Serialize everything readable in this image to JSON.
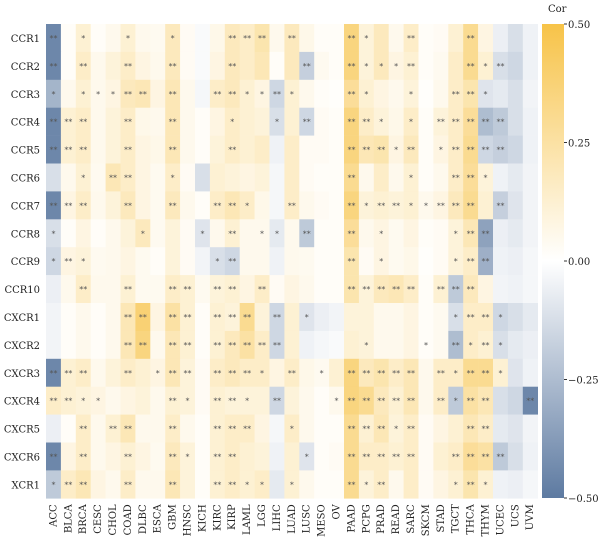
{
  "chart_data": {
    "type": "heatmap",
    "rows": [
      "CCR1",
      "CCR2",
      "CCR3",
      "CCR4",
      "CCR5",
      "CCR6",
      "CCR7",
      "CCR8",
      "CCR9",
      "CCR10",
      "CXCR1",
      "CXCR2",
      "CXCR3",
      "CXCR4",
      "CXCR5",
      "CXCR6",
      "XCR1"
    ],
    "columns": [
      "ACC",
      "BLCA",
      "BRCA",
      "CESC",
      "CHOL",
      "COAD",
      "DLBC",
      "ESCA",
      "GBM",
      "HNSC",
      "KICH",
      "KIRC",
      "KIRP",
      "LAML",
      "LGG",
      "LIHC",
      "LUAD",
      "LUSC",
      "MESO",
      "OV",
      "PAAD",
      "PCPG",
      "PRAD",
      "READ",
      "SARC",
      "SKCM",
      "STAD",
      "TGCT",
      "THCA",
      "THYM",
      "UCEC",
      "UCS",
      "UVM"
    ],
    "values": [
      [
        -0.45,
        0.02,
        0.12,
        0.02,
        0.05,
        0.12,
        0.05,
        0.04,
        0.18,
        0.03,
        -0.02,
        0.06,
        0.18,
        0.15,
        0.22,
        0.05,
        0.18,
        0.06,
        0.02,
        0.02,
        0.35,
        0.1,
        0.18,
        0.05,
        0.15,
        0.02,
        0.03,
        0.12,
        0.3,
        0.08,
        -0.06,
        -0.12,
        -0.05
      ],
      [
        -0.45,
        0.02,
        0.15,
        0.05,
        0.1,
        0.15,
        0.08,
        0.05,
        0.18,
        0.03,
        -0.02,
        0.08,
        0.18,
        0.15,
        0.2,
        0.02,
        0.18,
        -0.18,
        0.04,
        0.02,
        0.35,
        0.1,
        0.18,
        0.08,
        0.12,
        0.02,
        0.04,
        0.15,
        0.3,
        0.12,
        -0.12,
        -0.15,
        -0.05
      ],
      [
        -0.28,
        0.05,
        0.12,
        0.05,
        0.08,
        0.18,
        0.2,
        0.08,
        0.2,
        0.05,
        -0.03,
        0.15,
        0.18,
        0.12,
        0.08,
        -0.15,
        0.12,
        0.05,
        0.02,
        0.01,
        0.28,
        0.12,
        0.08,
        0.05,
        0.1,
        0.01,
        0.05,
        0.15,
        0.22,
        -0.1,
        -0.08,
        -0.12,
        -0.04
      ],
      [
        -0.45,
        0.12,
        0.15,
        0.05,
        0.1,
        0.15,
        0.06,
        0.05,
        0.2,
        0.05,
        0.02,
        0.08,
        0.15,
        0.12,
        0.1,
        -0.12,
        0.12,
        -0.15,
        0.03,
        0.02,
        0.35,
        0.15,
        0.1,
        0.06,
        0.15,
        0.02,
        0.1,
        0.15,
        0.28,
        -0.25,
        -0.2,
        -0.12,
        -0.05
      ],
      [
        -0.45,
        0.12,
        0.15,
        0.05,
        0.1,
        0.15,
        0.08,
        0.06,
        0.2,
        0.05,
        0.02,
        0.1,
        0.15,
        0.12,
        0.15,
        -0.05,
        0.15,
        0.03,
        0.03,
        0.02,
        0.35,
        0.2,
        0.22,
        0.08,
        0.18,
        0.02,
        0.08,
        0.15,
        0.3,
        -0.15,
        -0.18,
        -0.15,
        -0.05
      ],
      [
        -0.12,
        0.05,
        0.12,
        0.04,
        0.2,
        0.15,
        0.08,
        0.04,
        0.15,
        0.03,
        -0.12,
        0.12,
        0.1,
        0.08,
        0.1,
        -0.03,
        0.15,
        0.03,
        0.02,
        0.02,
        0.3,
        0.05,
        0.15,
        0.05,
        0.12,
        0.02,
        0.05,
        0.15,
        0.28,
        0.1,
        -0.05,
        -0.08,
        -0.04
      ],
      [
        -0.45,
        0.08,
        0.15,
        0.05,
        0.1,
        0.18,
        0.08,
        0.04,
        0.18,
        0.05,
        0.02,
        0.15,
        0.2,
        0.15,
        0.06,
        -0.03,
        0.15,
        0.05,
        0.03,
        0.02,
        0.35,
        0.1,
        0.12,
        0.1,
        0.12,
        0.05,
        0.08,
        0.18,
        0.3,
        0.12,
        -0.18,
        -0.1,
        -0.04
      ],
      [
        -0.12,
        0.02,
        0.08,
        0.02,
        0.05,
        0.1,
        0.18,
        0.04,
        0.1,
        0.03,
        -0.1,
        0.05,
        0.12,
        0.05,
        0.05,
        -0.08,
        0.05,
        -0.2,
        0.02,
        0.02,
        0.28,
        0.05,
        0.08,
        0.04,
        0.08,
        0.02,
        0.03,
        0.1,
        0.2,
        -0.35,
        -0.06,
        -0.08,
        -0.04
      ],
      [
        -0.15,
        0.08,
        0.1,
        0.04,
        0.05,
        0.08,
        0.04,
        0.02,
        0.1,
        0.03,
        -0.04,
        -0.12,
        -0.15,
        0.05,
        0.05,
        -0.05,
        0.05,
        0.04,
        0.02,
        0.02,
        0.22,
        0.03,
        0.08,
        0.04,
        0.06,
        0.01,
        0.03,
        0.1,
        0.15,
        -0.3,
        -0.05,
        -0.06,
        -0.03
      ],
      [
        -0.06,
        0.05,
        0.15,
        0.05,
        0.05,
        0.12,
        0.04,
        0.04,
        0.15,
        0.12,
        0.04,
        0.1,
        0.12,
        0.08,
        0.15,
        0.03,
        0.08,
        0.05,
        0.02,
        0.02,
        0.22,
        0.1,
        0.18,
        0.2,
        0.15,
        0.02,
        0.12,
        -0.2,
        0.18,
        0.08,
        -0.04,
        -0.05,
        -0.03
      ],
      [
        -0.04,
        0.02,
        0.05,
        0.02,
        0.05,
        0.2,
        0.38,
        0.08,
        0.25,
        0.12,
        0.02,
        0.12,
        0.1,
        0.3,
        0.1,
        -0.15,
        0.12,
        -0.1,
        -0.06,
        -0.04,
        0.1,
        0.1,
        0.05,
        0.05,
        0.08,
        0.02,
        0.04,
        -0.12,
        0.15,
        0.15,
        -0.15,
        -0.12,
        -0.08
      ],
      [
        -0.04,
        0.02,
        0.05,
        0.02,
        0.05,
        0.2,
        0.35,
        0.05,
        0.2,
        0.12,
        0.02,
        0.12,
        0.18,
        0.25,
        0.15,
        -0.15,
        0.12,
        -0.05,
        -0.03,
        -0.02,
        0.12,
        0.1,
        0.05,
        0.05,
        0.08,
        0.02,
        0.04,
        -0.25,
        0.15,
        0.12,
        -0.12,
        -0.08,
        -0.06
      ],
      [
        -0.45,
        0.12,
        0.15,
        0.05,
        0.1,
        0.15,
        0.12,
        0.08,
        0.2,
        0.1,
        0.03,
        0.15,
        0.18,
        0.15,
        0.15,
        0.08,
        0.15,
        0.06,
        0.04,
        0.12,
        0.35,
        0.18,
        0.22,
        0.15,
        0.2,
        0.05,
        0.15,
        0.15,
        0.3,
        0.3,
        0.12,
        -0.1,
        -0.05
      ],
      [
        0.15,
        0.12,
        0.1,
        0.08,
        0.05,
        0.08,
        0.1,
        0.05,
        0.12,
        0.1,
        0.03,
        0.12,
        0.1,
        0.1,
        0.1,
        -0.15,
        0.1,
        0.05,
        0.02,
        0.05,
        0.35,
        0.3,
        0.18,
        0.12,
        0.2,
        0.05,
        0.15,
        -0.2,
        0.25,
        0.2,
        -0.12,
        -0.15,
        -0.45
      ],
      [
        -0.06,
        0.02,
        0.15,
        0.05,
        0.12,
        0.2,
        0.05,
        0.05,
        0.15,
        0.05,
        0.02,
        0.12,
        0.15,
        0.15,
        0.08,
        -0.03,
        0.15,
        0.05,
        0.02,
        0.02,
        0.3,
        0.12,
        0.2,
        0.1,
        0.15,
        0.03,
        0.08,
        0.12,
        0.2,
        0.15,
        -0.08,
        -0.1,
        -0.04
      ],
      [
        -0.45,
        0.08,
        0.15,
        0.05,
        0.08,
        0.12,
        0.08,
        0.04,
        0.18,
        0.1,
        0.02,
        0.12,
        0.15,
        0.12,
        0.1,
        -0.05,
        0.12,
        -0.1,
        0.02,
        0.03,
        0.3,
        0.15,
        0.15,
        0.12,
        0.15,
        0.03,
        0.12,
        0.15,
        0.28,
        0.25,
        -0.2,
        -0.12,
        -0.05
      ],
      [
        -0.2,
        0.15,
        0.2,
        0.08,
        0.05,
        0.15,
        0.05,
        0.05,
        0.2,
        0.1,
        0.02,
        0.12,
        0.15,
        0.12,
        0.15,
        -0.08,
        0.12,
        0.05,
        0.02,
        0.02,
        0.3,
        0.1,
        0.15,
        0.05,
        0.15,
        0.03,
        0.08,
        0.12,
        0.22,
        0.12,
        -0.05,
        -0.06,
        -0.03
      ]
    ],
    "significance": [
      [
        "**",
        "",
        "*",
        "",
        "",
        "*",
        "",
        "",
        "*",
        "",
        "",
        "",
        "**",
        "**",
        "**",
        "",
        "**",
        "",
        "",
        "",
        "**",
        "*",
        "",
        "",
        "**",
        "",
        "",
        "",
        "**",
        "",
        "",
        "",
        ""
      ],
      [
        "**",
        "",
        "**",
        "",
        "",
        "**",
        "",
        "",
        "**",
        "",
        "",
        "",
        "**",
        "",
        "",
        "",
        "",
        "**",
        "",
        "",
        "**",
        "*",
        "*",
        "*",
        "**",
        "",
        "",
        "",
        "**",
        "*",
        "**",
        "",
        ""
      ],
      [
        "*",
        "",
        "*",
        "*",
        "*",
        "**",
        "**",
        "",
        "**",
        "",
        "",
        "**",
        "**",
        "*",
        "*",
        "**",
        "*",
        "",
        "",
        "",
        "**",
        "*",
        "",
        "",
        "*",
        "",
        "",
        "**",
        "**",
        "*",
        "",
        "",
        ""
      ],
      [
        "**",
        "**",
        "**",
        "",
        "",
        "**",
        "",
        "",
        "**",
        "",
        "",
        "",
        "*",
        "",
        "",
        "*",
        "",
        "**",
        "",
        "",
        "**",
        "**",
        "*",
        "",
        "*",
        "",
        "**",
        "**",
        "**",
        "**",
        "**",
        "",
        ""
      ],
      [
        "**",
        "**",
        "**",
        "",
        "",
        "**",
        "",
        "",
        "**",
        "",
        "",
        "",
        "**",
        "",
        "",
        "",
        "",
        "",
        "",
        "",
        "**",
        "**",
        "**",
        "*",
        "**",
        "",
        "*",
        "**",
        "**",
        "**",
        "**",
        "",
        ""
      ],
      [
        "",
        "",
        "*",
        "",
        "**",
        "**",
        "",
        "",
        "*",
        "",
        "",
        "",
        "",
        "",
        "",
        "",
        "",
        "",
        "",
        "",
        "**",
        "",
        "",
        "",
        "*",
        "",
        "",
        "**",
        "**",
        "*",
        "",
        "",
        ""
      ],
      [
        "**",
        "**",
        "**",
        "",
        "",
        "**",
        "",
        "",
        "**",
        "",
        "",
        "**",
        "**",
        "*",
        "",
        "",
        "**",
        "",
        "",
        "",
        "**",
        "*",
        "**",
        "**",
        "*",
        "*",
        "**",
        "**",
        "**",
        "",
        "**",
        "",
        ""
      ],
      [
        "*",
        "",
        "",
        "",
        "",
        "",
        "*",
        "",
        "",
        "",
        "*",
        "",
        "**",
        "",
        "*",
        "*",
        "",
        "**",
        "",
        "",
        "**",
        "",
        "*",
        "",
        "",
        "",
        "",
        "*",
        "**",
        "**",
        "",
        "",
        ""
      ],
      [
        "*",
        "**",
        "*",
        "",
        "",
        "",
        "",
        "",
        "",
        "",
        "",
        "*",
        "**",
        "",
        "",
        "",
        "",
        "",
        "",
        "",
        "**",
        "",
        "*",
        "",
        "",
        "",
        "",
        "*",
        "**",
        "**",
        "",
        "",
        ""
      ],
      [
        "",
        "",
        "**",
        "",
        "",
        "**",
        "",
        "",
        "**",
        "**",
        "",
        "**",
        "**",
        "",
        "**",
        "",
        "",
        "",
        "",
        "",
        "**",
        "**",
        "**",
        "**",
        "**",
        "",
        "**",
        "**",
        "**",
        "",
        "",
        "",
        ""
      ],
      [
        "",
        "",
        "",
        "",
        "",
        "**",
        "**",
        "",
        "**",
        "**",
        "",
        "**",
        "**",
        "**",
        "",
        "**",
        "",
        "*",
        "",
        "",
        "",
        "",
        "",
        "",
        "",
        "",
        "",
        "*",
        "**",
        "**",
        "*",
        "",
        ""
      ],
      [
        "",
        "",
        "",
        "",
        "",
        "**",
        "**",
        "",
        "**",
        "**",
        "",
        "**",
        "**",
        "**",
        "**",
        "**",
        "",
        "",
        "",
        "",
        "",
        "*",
        "",
        "",
        "",
        "*",
        "",
        "**",
        "*",
        "**",
        "*",
        "",
        ""
      ],
      [
        "**",
        "**",
        "**",
        "",
        "",
        "**",
        "",
        "*",
        "**",
        "**",
        "",
        "**",
        "**",
        "**",
        "*",
        "",
        "**",
        "",
        "*",
        "",
        "**",
        "**",
        "**",
        "**",
        "**",
        "",
        "**",
        "*",
        "**",
        "**",
        "*",
        "",
        ""
      ],
      [
        "**",
        "**",
        "*",
        "*",
        "",
        "",
        "",
        "",
        "**",
        "*",
        "",
        "**",
        "**",
        "*",
        "",
        "**",
        "",
        "",
        "",
        "*",
        "**",
        "**",
        "**",
        "**",
        "**",
        "",
        "**",
        "*",
        "**",
        "**",
        "",
        "",
        "**"
      ],
      [
        "",
        "",
        "**",
        "",
        "**",
        "**",
        "",
        "",
        "**",
        "",
        "",
        "**",
        "**",
        "**",
        "",
        "",
        "*",
        "",
        "",
        "",
        "**",
        "**",
        "**",
        "*",
        "**",
        "",
        "",
        "",
        "**",
        "**",
        "",
        "",
        ""
      ],
      [
        "**",
        "",
        "**",
        "",
        "",
        "**",
        "",
        "",
        "**",
        "*",
        "",
        "**",
        "**",
        "",
        "",
        "",
        "",
        "*",
        "",
        "",
        "**",
        "**",
        "**",
        "**",
        "**",
        "",
        "",
        "**",
        "**",
        "**",
        "**",
        "",
        ""
      ],
      [
        "*",
        "**",
        "**",
        "",
        "",
        "**",
        "",
        "",
        "**",
        "",
        "",
        "**",
        "**",
        "*",
        "*",
        "",
        "*",
        "",
        "",
        "",
        "**",
        "*",
        "**",
        "",
        "",
        "",
        "",
        "*",
        "**",
        "*",
        "",
        "",
        ""
      ]
    ],
    "colorbar": {
      "title": "Cor",
      "min": -0.5,
      "max": 0.5,
      "ticks": [
        "0.50",
        "0.25",
        "0.00",
        "−0.25",
        "−0.50"
      ],
      "tick_values": [
        0.5,
        0.25,
        0.0,
        -0.25,
        -0.5
      ]
    },
    "colors": {
      "negative": "#5d7aa1",
      "neutral": "#ffffff",
      "positive": "#f7c348"
    }
  }
}
